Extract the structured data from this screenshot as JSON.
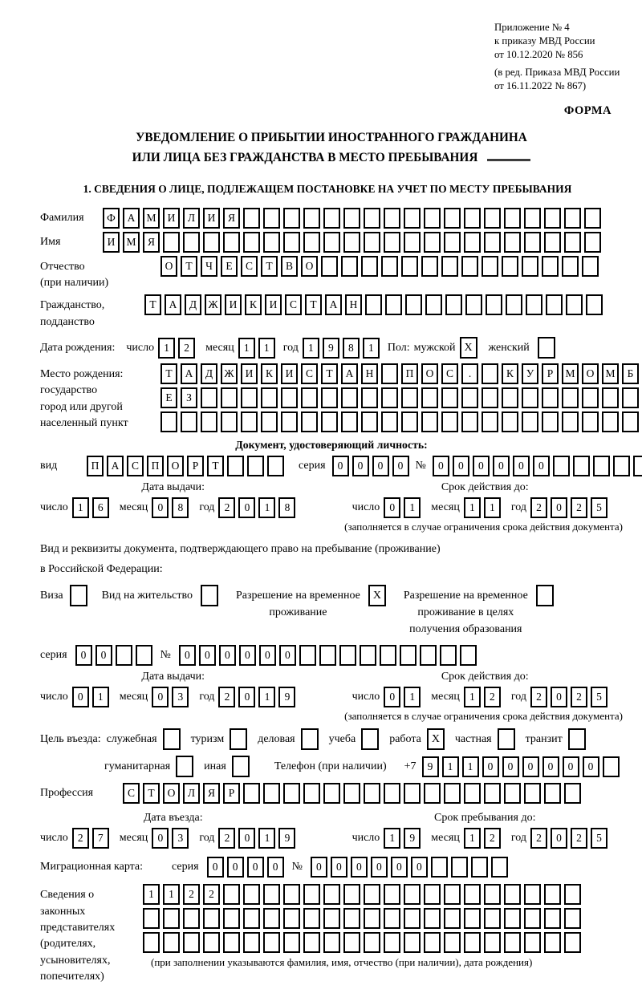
{
  "meta": {
    "appendix_lines": [
      "Приложение № 4",
      "к приказу МВД России",
      "от 10.12.2020 № 856"
    ],
    "edition_lines": [
      "(в ред. Приказа МВД России",
      "от 16.11.2022 № 867)"
    ],
    "form_label": "ФОРМА"
  },
  "title": {
    "line1": "УВЕДОМЛЕНИЕ О ПРИБЫТИИ ИНОСТРАННОГО ГРАЖДАНИНА",
    "line2": "ИЛИ ЛИЦА БЕЗ ГРАЖДАНСТВА В МЕСТО ПРЕБЫВАНИЯ"
  },
  "section1": {
    "heading": "1. СВЕДЕНИЯ О ЛИЦЕ, ПОДЛЕЖАЩЕМ ПОСТАНОВКЕ НА УЧЕТ ПО МЕСТУ ПРЕБЫВАНИЯ",
    "labels": {
      "day": "число",
      "month": "месяц",
      "year": "год",
      "series": "серия",
      "number": "№"
    },
    "surname": {
      "label": "Фамилия",
      "field": {
        "chars": [
          "Ф",
          "А",
          "М",
          "И",
          "Л",
          "И",
          "Я"
        ],
        "length": 25
      }
    },
    "firstname": {
      "label": "Имя",
      "field": {
        "chars": [
          "И",
          "М",
          "Я"
        ],
        "length": 25
      }
    },
    "patronymic": {
      "label1": "Отчество",
      "label2": "(при наличии)",
      "field": {
        "chars": [
          "О",
          "Т",
          "Ч",
          "Е",
          "С",
          "Т",
          "В",
          "О"
        ],
        "length": 22
      }
    },
    "citizenship": {
      "label1": "Гражданство,",
      "label2": "подданство",
      "field": {
        "chars": [
          "Т",
          "А",
          "Д",
          "Ж",
          "И",
          "К",
          "И",
          "С",
          "Т",
          "А",
          "Н"
        ],
        "length": 23
      }
    },
    "birth_date": {
      "label": "Дата рождения:",
      "day": [
        "1",
        "2"
      ],
      "month": [
        "1",
        "1"
      ],
      "year": [
        "1",
        "9",
        "8",
        "1"
      ],
      "sex_label": "Пол:",
      "male_label": "мужской",
      "male_value": "X",
      "female_label": "женский",
      "female_value": ""
    },
    "birth_place": {
      "label_lines": [
        "Место рождения:",
        "государство",
        "город или другой",
        "населенный пункт"
      ],
      "row1": {
        "chars": [
          "Т",
          "А",
          "Д",
          "Ж",
          "И",
          "К",
          "И",
          "С",
          "Т",
          "А",
          "Н",
          "",
          "П",
          "О",
          "С",
          ".",
          "",
          "К",
          "У",
          "Р",
          "М",
          "О",
          "М",
          "Б"
        ],
        "length": 24
      },
      "row2": {
        "chars": [
          "Е",
          "З"
        ],
        "length": 24
      },
      "row3": {
        "chars": [],
        "length": 24
      }
    },
    "identity_doc": {
      "heading": "Документ, удостоверяющий личность:",
      "type_label": "вид",
      "type": {
        "chars": [
          "П",
          "А",
          "С",
          "П",
          "О",
          "Р",
          "Т"
        ],
        "length": 10
      },
      "series": {
        "chars": [
          "0",
          "0",
          "0",
          "0"
        ],
        "length": 4
      },
      "number": {
        "chars": [
          "0",
          "0",
          "0",
          "0",
          "0",
          "0"
        ],
        "length": 11
      },
      "issue": {
        "head": "Дата выдачи:",
        "day": [
          "1",
          "6"
        ],
        "month": [
          "0",
          "8"
        ],
        "year": [
          "2",
          "0",
          "1",
          "8"
        ]
      },
      "expiry": {
        "head": "Срок действия до:",
        "day": [
          "0",
          "1"
        ],
        "month": [
          "1",
          "1"
        ],
        "year": [
          "2",
          "0",
          "2",
          "5"
        ]
      },
      "note": "(заполняется в случае ограничения срока действия документа)"
    },
    "residence_doc": {
      "intro1": "Вид и реквизиты документа, подтверждающего право на пребывание (проживание)",
      "intro2": "в Российской Федерации:",
      "visa_label": "Виза",
      "visa_value": "",
      "permit_label": "Вид на жительство",
      "permit_value": "",
      "temp_line1": "Разрешение на временное",
      "temp_line2": "проживание",
      "temp_value": "X",
      "edu_line1": "Разрешение на временное",
      "edu_line2": "проживание в целях",
      "edu_line3": "получения образования",
      "edu_value": "",
      "series": {
        "chars": [
          "0",
          "0"
        ],
        "length": 4
      },
      "number": {
        "chars": [
          "0",
          "0",
          "0",
          "0",
          "0",
          "0"
        ],
        "length": 15
      },
      "issue": {
        "head": "Дата выдачи:",
        "day": [
          "0",
          "1"
        ],
        "month": [
          "0",
          "3"
        ],
        "year": [
          "2",
          "0",
          "1",
          "9"
        ]
      },
      "expiry": {
        "head": "Срок действия до:",
        "day": [
          "0",
          "1"
        ],
        "month": [
          "1",
          "2"
        ],
        "year": [
          "2",
          "0",
          "2",
          "5"
        ]
      },
      "note": "(заполняется в случае ограничения срока действия документа)"
    },
    "purpose": {
      "label": "Цель въезда:",
      "row1": [
        {
          "label": "служебная",
          "value": ""
        },
        {
          "label": "туризм",
          "value": ""
        },
        {
          "label": "деловая",
          "value": ""
        },
        {
          "label": "учеба",
          "value": ""
        },
        {
          "label": "работа",
          "value": "X"
        },
        {
          "label": "частная",
          "value": ""
        },
        {
          "label": "транзит",
          "value": ""
        }
      ],
      "row2": [
        {
          "label": "гуманитарная",
          "value": ""
        },
        {
          "label": "иная",
          "value": ""
        }
      ]
    },
    "phone": {
      "label": "Телефон (при наличии)",
      "prefix": "+7",
      "field": {
        "chars": [
          "9",
          "1",
          "1",
          "0",
          "0",
          "0",
          "0",
          "0",
          "0"
        ],
        "length": 10
      }
    },
    "profession": {
      "label": "Профессия",
      "field": {
        "chars": [
          "С",
          "Т",
          "О",
          "Л",
          "Я",
          "Р"
        ],
        "length": 23
      }
    },
    "entry": {
      "head": "Дата въезда:",
      "day": [
        "2",
        "7"
      ],
      "month": [
        "0",
        "3"
      ],
      "year": [
        "2",
        "0",
        "1",
        "9"
      ]
    },
    "stay": {
      "head": "Срок пребывания до:",
      "day": [
        "1",
        "9"
      ],
      "month": [
        "1",
        "2"
      ],
      "year": [
        "2",
        "0",
        "2",
        "5"
      ]
    },
    "migration_card": {
      "label": "Миграционная карта:",
      "series": {
        "chars": [
          "0",
          "0",
          "0",
          "0"
        ],
        "length": 4
      },
      "number": {
        "chars": [
          "0",
          "0",
          "0",
          "0",
          "0",
          "0"
        ],
        "length": 10
      }
    },
    "representatives": {
      "label_lines": [
        "Сведения о",
        "законных",
        "представителях",
        "(родителях,",
        "усыновителях,",
        "попечителях)"
      ],
      "row1": {
        "chars": [
          "1",
          "1",
          "2",
          "2"
        ],
        "length": 22
      },
      "row2": {
        "chars": [],
        "length": 22
      },
      "row3": {
        "chars": [],
        "length": 22
      },
      "note": "(при заполнении указываются фамилия, имя, отчество (при наличии), дата рождения)"
    }
  }
}
